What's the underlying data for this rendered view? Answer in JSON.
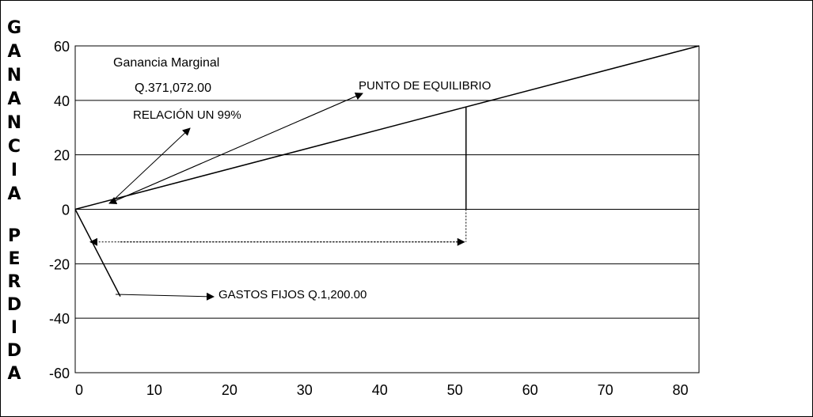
{
  "chart_data": {
    "type": "line",
    "xlim": [
      0,
      83
    ],
    "ylim": [
      -60,
      60
    ],
    "x_ticks": [
      {
        "value": 0,
        "label": "0"
      },
      {
        "value": 10,
        "label": "10"
      },
      {
        "value": 20,
        "label": "20"
      },
      {
        "value": 30,
        "label": "30"
      },
      {
        "value": 40,
        "label": "40"
      },
      {
        "value": 50,
        "label": "50"
      },
      {
        "value": 60,
        "label": "60"
      },
      {
        "value": 70,
        "label": "70"
      },
      {
        "value": 80,
        "label": "80"
      }
    ],
    "y_ticks": [
      {
        "value": 60,
        "label": "60"
      },
      {
        "value": 40,
        "label": "40"
      },
      {
        "value": 20,
        "label": "20"
      },
      {
        "value": 0,
        "label": "0"
      },
      {
        "value": -20,
        "label": "-20"
      },
      {
        "value": -40,
        "label": "-40"
      },
      {
        "value": -60,
        "label": "-60"
      }
    ],
    "gridlines_y": [
      40,
      20,
      0,
      -20,
      -40
    ],
    "series": [
      {
        "x": [
          0,
          83
        ],
        "y": [
          0,
          60
        ],
        "color": "#000000"
      }
    ],
    "equilibrium_x": 52,
    "fixed_cost_line": {
      "x": [
        0,
        6
      ],
      "y": [
        0,
        -32
      ]
    },
    "ylabel_top": "GANANCIA",
    "ylabel_bottom": "PERDIDA",
    "annotations": {
      "ganancia_marginal": "Ganancia Marginal",
      "ganancia_monto": "Q.371,072.00",
      "relacion": "RELACIÓN UN 99%",
      "punto_equilibrio": "PUNTO DE EQUILIBRIO",
      "gastos_fijos": "GASTOS FIJOS Q.1,200.00"
    }
  }
}
